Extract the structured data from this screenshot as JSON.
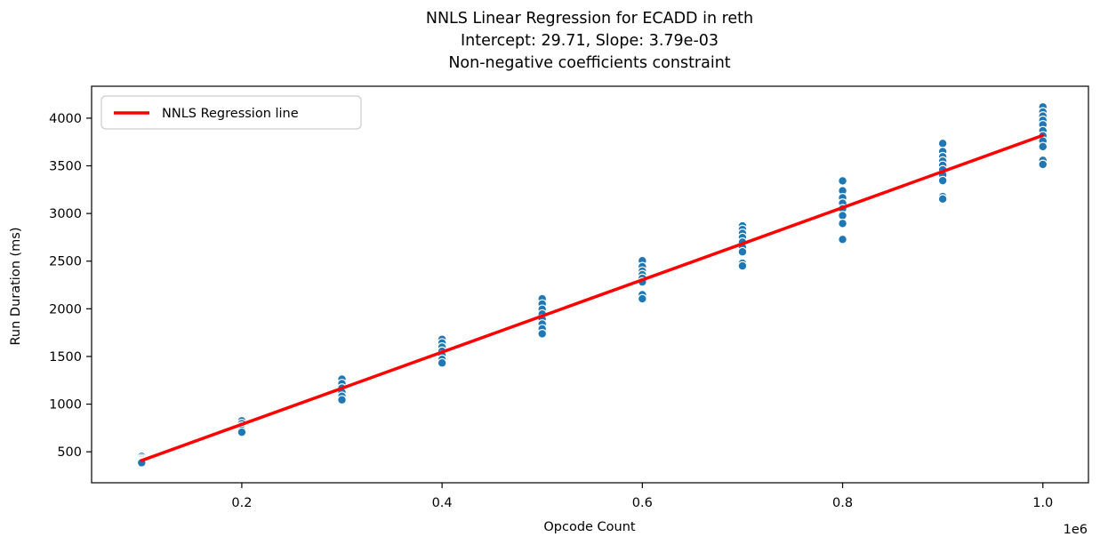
{
  "chart_data": {
    "type": "scatter",
    "title_lines": [
      "NNLS Linear Regression for ECADD in reth",
      "Intercept: 29.71, Slope: 3.79e-03",
      "Non-negative coefficients constraint"
    ],
    "xlabel": "Opcode Count",
    "ylabel": "Run Duration (ms)",
    "x_offset_label": "1e6",
    "xlim": [
      50000,
      1045500
    ],
    "ylim": [
      175,
      4335
    ],
    "grid": false,
    "x_ticks": [
      {
        "value": 200000,
        "label": "0.2"
      },
      {
        "value": 400000,
        "label": "0.4"
      },
      {
        "value": 600000,
        "label": "0.6"
      },
      {
        "value": 800000,
        "label": "0.8"
      },
      {
        "value": 1000000,
        "label": "1.0"
      }
    ],
    "y_ticks": [
      {
        "value": 500,
        "label": "500"
      },
      {
        "value": 1000,
        "label": "1000"
      },
      {
        "value": 1500,
        "label": "1500"
      },
      {
        "value": 2000,
        "label": "2000"
      },
      {
        "value": 2500,
        "label": "2500"
      },
      {
        "value": 3000,
        "label": "3000"
      },
      {
        "value": 3500,
        "label": "3500"
      },
      {
        "value": 4000,
        "label": "4000"
      }
    ],
    "legend": {
      "label": "NNLS Regression line",
      "position": "upper left"
    },
    "regression_line": {
      "intercept": 29.71,
      "slope": 0.00379,
      "x": [
        100000,
        1000000
      ],
      "y": [
        408.7,
        3819.7
      ],
      "color": "#ff0000",
      "width": 3.5
    },
    "scatter": {
      "color": "#1f77b4",
      "edge_color": "#ffffff",
      "marker_radius": 4.8,
      "clusters": [
        {
          "x": 100000,
          "y": [
            452,
            430,
            415,
            402,
            392,
            385
          ]
        },
        {
          "x": 200000,
          "y": [
            825,
            795,
            768,
            745,
            725,
            705
          ]
        },
        {
          "x": 300000,
          "y": [
            1262,
            1215,
            1168,
            1125,
            1082,
            1045
          ]
        },
        {
          "x": 400000,
          "y": [
            1680,
            1642,
            1598,
            1555,
            1512,
            1470,
            1432
          ]
        },
        {
          "x": 500000,
          "y": [
            2105,
            2050,
            1995,
            1945,
            1892,
            1840,
            1790,
            1738
          ]
        },
        {
          "x": 600000,
          "y": [
            2505,
            2442,
            2395,
            2358,
            2320,
            2282,
            2148,
            2105
          ]
        },
        {
          "x": 700000,
          "y": [
            2870,
            2832,
            2792,
            2748,
            2700,
            2645,
            2598,
            2478,
            2450
          ]
        },
        {
          "x": 800000,
          "y": [
            3342,
            3238,
            3165,
            3108,
            3050,
            2978,
            2895,
            2728
          ]
        },
        {
          "x": 900000,
          "y": [
            3735,
            3650,
            3595,
            3550,
            3505,
            3458,
            3405,
            3345,
            3178,
            3152
          ]
        },
        {
          "x": 1000000,
          "y": [
            4118,
            4065,
            4022,
            3978,
            3930,
            3868,
            3815,
            3760,
            3702,
            3558,
            3515
          ]
        }
      ]
    },
    "spine_color": "#000000"
  }
}
